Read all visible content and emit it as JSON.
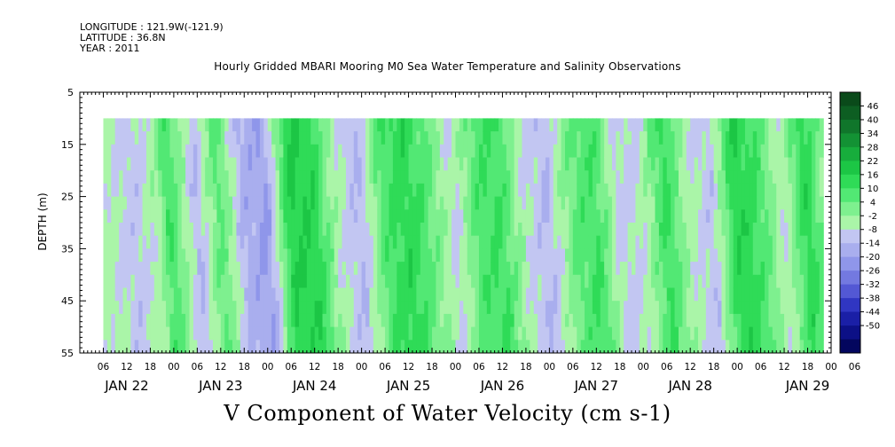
{
  "meta": {
    "longitude": "LONGITUDE : 121.9W(-121.9)",
    "latitude": "LATITUDE : 36.8N",
    "year": "YEAR : 2011"
  },
  "chart_data": {
    "type": "heatmap",
    "title": "Hourly Gridded MBARI Mooring M0 Sea Water Temperature and Salinity Observations",
    "xlabel": "V Component of Water Velocity (cm s-1)",
    "ylabel": "DEPTH (m)",
    "ylim": [
      5,
      55
    ],
    "y_ticks": [
      "5",
      "15",
      "25",
      "35",
      "45",
      "55"
    ],
    "y_inverted": true,
    "x_hour_ticks": [
      "06",
      "12",
      "18",
      "00",
      "06",
      "12",
      "18",
      "00",
      "06",
      "12",
      "18",
      "00",
      "06",
      "12",
      "18",
      "00",
      "06",
      "12",
      "18",
      "00",
      "06",
      "12",
      "18",
      "00",
      "06",
      "12",
      "18",
      "00",
      "06",
      "12",
      "18",
      "00",
      "06"
    ],
    "x_day_labels": [
      "JAN 22",
      "JAN 23",
      "JAN 24",
      "JAN 25",
      "JAN 26",
      "JAN 27",
      "JAN 28",
      "JAN 29"
    ],
    "x_range_hours": [
      0,
      192
    ],
    "data_start_hour": 6,
    "data_depth_min": 10,
    "colorbar": {
      "labels": [
        "46",
        "40",
        "34",
        "28",
        "22",
        "16",
        "10",
        "4",
        "-2",
        "-8",
        "-14",
        "-20",
        "-26",
        "-32",
        "-38",
        "-44",
        "-50"
      ],
      "colors": [
        "#0a4a1a",
        "#0d5e22",
        "#10762b",
        "#139234",
        "#17ad3c",
        "#1cc645",
        "#2fdb57",
        "#52e874",
        "#7ef08f",
        "#aaf5a8",
        "#c2c6f2",
        "#a9aeee",
        "#8f96ea",
        "#7379e0",
        "#5358d4",
        "#3036c2",
        "#1a1fa6",
        "#0c1086",
        "#03065e"
      ]
    },
    "description_v_by_time": [
      {
        "t": 6,
        "v": -6
      },
      {
        "t": 12,
        "v": -12
      },
      {
        "t": 18,
        "v": -4
      },
      {
        "t": 21,
        "v": 10
      },
      {
        "t": 28,
        "v": -14
      },
      {
        "t": 34,
        "v": 6
      },
      {
        "t": 40,
        "v": -16
      },
      {
        "t": 46,
        "v": -20
      },
      {
        "t": 52,
        "v": 16
      },
      {
        "t": 58,
        "v": 14
      },
      {
        "t": 64,
        "v": -6
      },
      {
        "t": 70,
        "v": -14
      },
      {
        "t": 76,
        "v": 8
      },
      {
        "t": 82,
        "v": 14
      },
      {
        "t": 88,
        "v": 4
      },
      {
        "t": 94,
        "v": -10
      },
      {
        "t": 100,
        "v": 8
      },
      {
        "t": 106,
        "v": 10
      },
      {
        "t": 112,
        "v": -8
      },
      {
        "t": 118,
        "v": -14
      },
      {
        "t": 124,
        "v": 4
      },
      {
        "t": 130,
        "v": 10
      },
      {
        "t": 136,
        "v": -10
      },
      {
        "t": 142,
        "v": -8
      },
      {
        "t": 148,
        "v": 12
      },
      {
        "t": 154,
        "v": -6
      },
      {
        "t": 160,
        "v": -12
      },
      {
        "t": 166,
        "v": 16
      },
      {
        "t": 172,
        "v": 8
      },
      {
        "t": 178,
        "v": -8
      },
      {
        "t": 184,
        "v": 14
      },
      {
        "t": 190,
        "v": -6
      }
    ]
  }
}
